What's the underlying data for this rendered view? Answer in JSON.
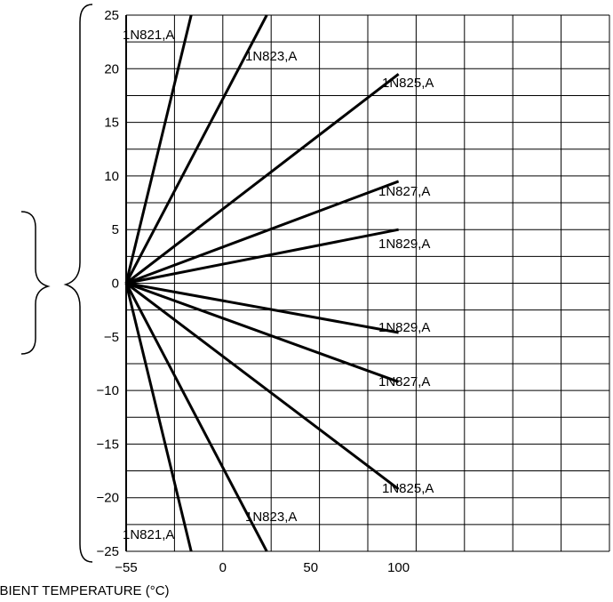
{
  "chart_data": {
    "type": "line",
    "title": "",
    "xlabel": "AMBIENT TEMPERATURE (°C)",
    "ylabel": "",
    "xlim": [
      -55,
      220
    ],
    "ylim": [
      -25,
      25
    ],
    "x_ticks": [
      -55,
      0,
      50,
      100
    ],
    "x_tick_labels": [
      "−55",
      "0",
      "50",
      "100"
    ],
    "y_ticks": [
      -25,
      -20,
      -15,
      -10,
      -5,
      0,
      5,
      10,
      15,
      20,
      25
    ],
    "y_tick_labels": [
      "−25",
      "−20",
      "−15",
      "−10",
      "−5",
      "0",
      "5",
      "10",
      "15",
      "20",
      "25"
    ],
    "grid": true,
    "series": [
      {
        "name": "1N821,A",
        "x": [
          -55,
          -18
        ],
        "y": [
          0,
          25
        ]
      },
      {
        "name": "1N823,A",
        "x": [
          -55,
          25
        ],
        "y": [
          0,
          25
        ]
      },
      {
        "name": "1N825,A",
        "x": [
          -55,
          100
        ],
        "y": [
          0,
          19.5
        ]
      },
      {
        "name": "1N827,A",
        "x": [
          -55,
          100
        ],
        "y": [
          0,
          9.5
        ]
      },
      {
        "name": "1N829,A",
        "x": [
          -55,
          100
        ],
        "y": [
          0,
          5
        ]
      },
      {
        "name": "1N829,A",
        "x": [
          -55,
          100
        ],
        "y": [
          0,
          -4.6
        ]
      },
      {
        "name": "1N827,A",
        "x": [
          -55,
          100
        ],
        "y": [
          0,
          -9.2
        ]
      },
      {
        "name": "1N825,A",
        "x": [
          -55,
          100
        ],
        "y": [
          0,
          -19.2
        ]
      },
      {
        "name": "1N823,A",
        "x": [
          -55,
          25
        ],
        "y": [
          0,
          -25
        ]
      },
      {
        "name": "1N821,A",
        "x": [
          -55,
          -18
        ],
        "y": [
          0,
          -25
        ]
      }
    ]
  }
}
